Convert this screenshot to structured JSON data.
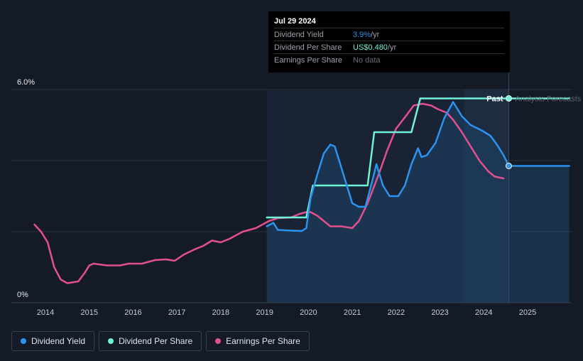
{
  "chart_data": {
    "type": "line",
    "title": "",
    "xlabel": "",
    "ylabel": "",
    "y_labels": {
      "top": "6.0%",
      "bottom": "0%"
    },
    "ylim": [
      0,
      6.0
    ],
    "xlim": [
      2013.0,
      2026.0
    ],
    "x_ticks": [
      "2014",
      "2015",
      "2016",
      "2017",
      "2018",
      "2019",
      "2020",
      "2021",
      "2022",
      "2023",
      "2024",
      "2025"
    ],
    "past_label": "Past",
    "forecast_label": "Analysts Forecasts",
    "forecast_start": 2024.57,
    "forecast_band_start": 2023.55,
    "past_start": 2019.05,
    "series": [
      {
        "name": "Dividend Yield",
        "color": "#2b93f0",
        "points": [
          [
            2019.05,
            2.15
          ],
          [
            2019.2,
            2.25
          ],
          [
            2019.3,
            2.05
          ],
          [
            2019.6,
            2.03
          ],
          [
            2019.85,
            2.02
          ],
          [
            2019.95,
            2.1
          ],
          [
            2020.05,
            2.95
          ],
          [
            2020.2,
            3.6
          ],
          [
            2020.35,
            4.2
          ],
          [
            2020.5,
            4.45
          ],
          [
            2020.6,
            4.4
          ],
          [
            2020.75,
            3.8
          ],
          [
            2021.0,
            2.8
          ],
          [
            2021.15,
            2.7
          ],
          [
            2021.3,
            2.7
          ],
          [
            2021.45,
            3.4
          ],
          [
            2021.55,
            3.9
          ],
          [
            2021.7,
            3.3
          ],
          [
            2021.85,
            3.0
          ],
          [
            2022.05,
            3.0
          ],
          [
            2022.2,
            3.3
          ],
          [
            2022.35,
            3.9
          ],
          [
            2022.5,
            4.35
          ],
          [
            2022.58,
            4.1
          ],
          [
            2022.7,
            4.15
          ],
          [
            2022.9,
            4.5
          ],
          [
            2023.1,
            5.2
          ],
          [
            2023.3,
            5.65
          ],
          [
            2023.5,
            5.25
          ],
          [
            2023.7,
            5.0
          ],
          [
            2023.95,
            4.85
          ],
          [
            2024.15,
            4.7
          ],
          [
            2024.3,
            4.45
          ],
          [
            2024.45,
            4.15
          ],
          [
            2024.57,
            3.85
          ],
          [
            2025.95,
            3.85
          ]
        ]
      },
      {
        "name": "Dividend Per Share",
        "color": "#6ff2d6",
        "points": [
          [
            2019.05,
            2.4
          ],
          [
            2019.85,
            2.4
          ],
          [
            2019.95,
            2.4
          ],
          [
            2020.1,
            3.3
          ],
          [
            2021.35,
            3.3
          ],
          [
            2021.5,
            4.8
          ],
          [
            2022.35,
            4.8
          ],
          [
            2022.55,
            5.75
          ],
          [
            2025.95,
            5.75
          ]
        ]
      },
      {
        "name": "Earnings Per Share",
        "color": "#e2508d",
        "points": [
          [
            2013.75,
            2.2
          ],
          [
            2013.9,
            2.0
          ],
          [
            2014.05,
            1.7
          ],
          [
            2014.2,
            1.0
          ],
          [
            2014.35,
            0.65
          ],
          [
            2014.5,
            0.55
          ],
          [
            2014.75,
            0.6
          ],
          [
            2014.9,
            0.85
          ],
          [
            2015.0,
            1.05
          ],
          [
            2015.1,
            1.1
          ],
          [
            2015.4,
            1.05
          ],
          [
            2015.7,
            1.05
          ],
          [
            2015.9,
            1.1
          ],
          [
            2016.2,
            1.1
          ],
          [
            2016.5,
            1.2
          ],
          [
            2016.75,
            1.22
          ],
          [
            2016.95,
            1.18
          ],
          [
            2017.15,
            1.35
          ],
          [
            2017.4,
            1.5
          ],
          [
            2017.6,
            1.6
          ],
          [
            2017.8,
            1.75
          ],
          [
            2018.0,
            1.7
          ],
          [
            2018.2,
            1.8
          ],
          [
            2018.5,
            2.0
          ],
          [
            2018.8,
            2.1
          ],
          [
            2019.1,
            2.3
          ],
          [
            2019.3,
            2.38
          ],
          [
            2019.6,
            2.4
          ],
          [
            2019.8,
            2.5
          ],
          [
            2019.95,
            2.55
          ],
          [
            2020.05,
            2.55
          ],
          [
            2020.2,
            2.45
          ],
          [
            2020.35,
            2.3
          ],
          [
            2020.5,
            2.15
          ],
          [
            2020.75,
            2.15
          ],
          [
            2021.0,
            2.1
          ],
          [
            2021.15,
            2.3
          ],
          [
            2021.35,
            2.8
          ],
          [
            2021.6,
            3.6
          ],
          [
            2021.8,
            4.3
          ],
          [
            2022.0,
            4.9
          ],
          [
            2022.25,
            5.3
          ],
          [
            2022.4,
            5.55
          ],
          [
            2022.6,
            5.6
          ],
          [
            2022.8,
            5.55
          ],
          [
            2022.95,
            5.45
          ],
          [
            2023.15,
            5.35
          ],
          [
            2023.3,
            5.15
          ],
          [
            2023.5,
            4.8
          ],
          [
            2023.7,
            4.4
          ],
          [
            2023.9,
            4.0
          ],
          [
            2024.1,
            3.7
          ],
          [
            2024.25,
            3.55
          ],
          [
            2024.45,
            3.5
          ]
        ]
      }
    ],
    "legend": [
      "Dividend Yield",
      "Dividend Per Share",
      "Earnings Per Share"
    ]
  },
  "tooltip": {
    "date": "Jul 29 2024",
    "rows": [
      {
        "label": "Dividend Yield",
        "value": "3.9%",
        "unit": " /yr"
      },
      {
        "label": "Dividend Per Share",
        "value": "US$0.480",
        "unit": " /yr"
      },
      {
        "label": "Earnings Per Share",
        "value": "No data",
        "unit": ""
      }
    ]
  },
  "legend": {
    "dividend_yield": "Dividend Yield",
    "dividend_per_share": "Dividend Per Share",
    "earnings_per_share": "Earnings Per Share"
  },
  "colors": {
    "yield": "#2b93f0",
    "dps": "#6ff2d6",
    "eps": "#e2508d"
  }
}
